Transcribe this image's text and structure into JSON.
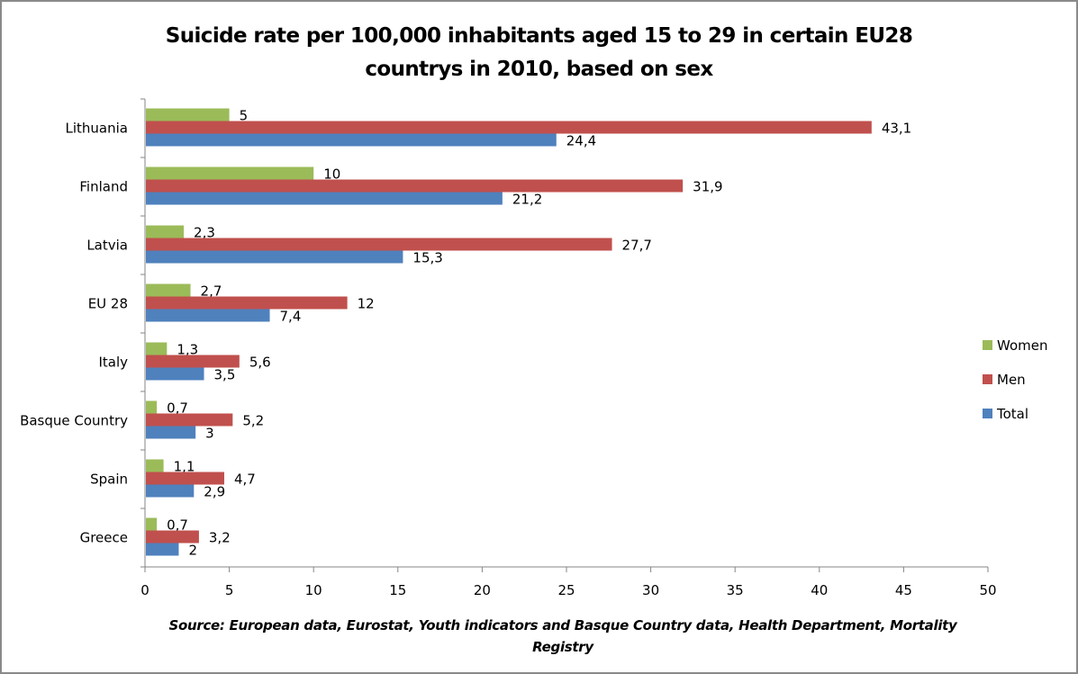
{
  "chart_data": {
    "type": "bar",
    "orientation": "horizontal",
    "title": "Suicide rate per 100,000 inhabitants aged 15 to 29 in certain EU28 countrys in 2010, based on sex",
    "title_lines": [
      "Suicide rate per 100,000 inhabitants aged 15 to 29 in certain EU28",
      "countrys in 2010, based on sex"
    ],
    "xlabel": "",
    "ylabel": "",
    "xlim": [
      0,
      50
    ],
    "x_ticks": [
      0,
      5,
      10,
      15,
      20,
      25,
      30,
      35,
      40,
      45,
      50
    ],
    "x_tick_labels": [
      "0",
      "5",
      "10",
      "15",
      "20",
      "25",
      "30",
      "35",
      "40",
      "45",
      "50"
    ],
    "grid": false,
    "legend_position": "right",
    "categories": [
      "Lithuania",
      "Finland",
      "Latvia",
      "EU 28",
      "Italy",
      "Basque Country",
      "Spain",
      "Greece"
    ],
    "series": [
      {
        "name": "Women",
        "color": "#9BBB59",
        "values": [
          5,
          10,
          2.3,
          2.7,
          1.3,
          0.7,
          1.1,
          0.7
        ],
        "labels": [
          "5",
          "10",
          "2,3",
          "2,7",
          "1,3",
          "0,7",
          "1,1",
          "0,7"
        ]
      },
      {
        "name": "Men",
        "color": "#C0504D",
        "values": [
          43.1,
          31.9,
          27.7,
          12,
          5.6,
          5.2,
          4.7,
          3.2
        ],
        "labels": [
          "43,1",
          "31,9",
          "27,7",
          "12",
          "5,6",
          "5,2",
          "4,7",
          "3,2"
        ]
      },
      {
        "name": "Total",
        "color": "#4F81BD",
        "values": [
          24.4,
          21.2,
          15.3,
          7.4,
          3.5,
          3,
          2.9,
          2
        ],
        "labels": [
          "24,4",
          "21,2",
          "15,3",
          "7,4",
          "3,5",
          "3",
          "2,9",
          "2"
        ]
      }
    ],
    "source": "Source: European data, Eurostat, Youth indicators and Basque Country data, Health Department, Mortality Registry",
    "source_lines": [
      "Source: European data, Eurostat, Youth indicators and Basque Country data, Health Department, Mortality",
      "Registry"
    ]
  }
}
